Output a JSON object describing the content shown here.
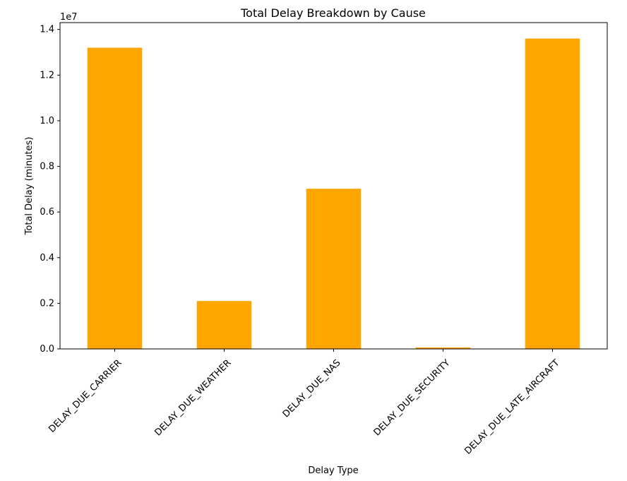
{
  "chart_data": {
    "type": "bar",
    "title": "Total Delay Breakdown by Cause",
    "xlabel": "Delay Type",
    "ylabel": "Total Delay (minutes)",
    "y_offset_label": "1e7",
    "categories": [
      "DELAY_DUE_CARRIER",
      "DELAY_DUE_WEATHER",
      "DELAY_DUE_NAS",
      "DELAY_DUE_SECURITY",
      "DELAY_DUE_LATE_AIRCRAFT"
    ],
    "values": [
      13200000,
      2100000,
      7020000,
      65000,
      13600000
    ],
    "ylim": [
      0,
      14300000
    ],
    "y_ticks": [
      0,
      2000000,
      4000000,
      6000000,
      8000000,
      10000000,
      12000000,
      14000000
    ],
    "y_tick_labels": [
      "0.0",
      "0.2",
      "0.4",
      "0.6",
      "0.8",
      "1.0",
      "1.2",
      "1.4"
    ],
    "bar_color": "#ffa500",
    "grid": false,
    "legend": "none"
  }
}
